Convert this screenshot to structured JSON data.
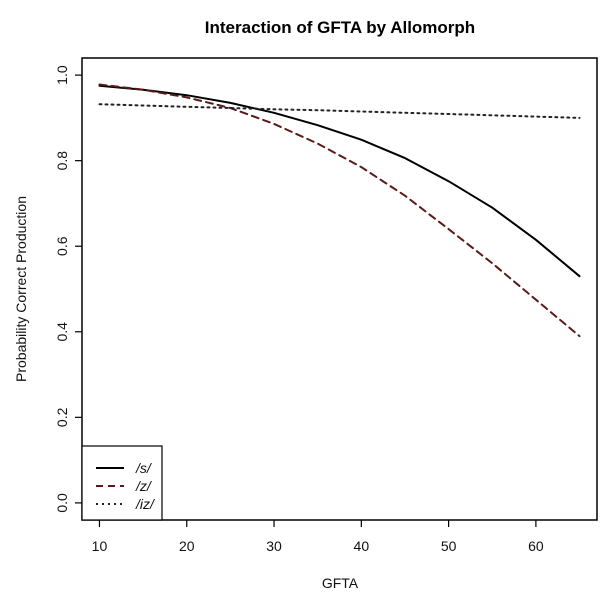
{
  "chart_data": {
    "type": "line",
    "title": "Interaction of GFTA by Allomorph",
    "xlabel": "GFTA",
    "ylabel": "Probability Correct Production",
    "xlim": [
      8,
      67
    ],
    "ylim": [
      -0.04,
      1.04
    ],
    "xticks": [
      10,
      20,
      30,
      40,
      50,
      60
    ],
    "yticks": [
      0.0,
      0.2,
      0.4,
      0.6,
      0.8,
      1.0
    ],
    "x": [
      10,
      15,
      20,
      25,
      30,
      35,
      40,
      45,
      50,
      55,
      60,
      65
    ],
    "series": [
      {
        "name": "/s/",
        "style": "solid",
        "color": "#000000",
        "values": [
          0.975,
          0.966,
          0.953,
          0.935,
          0.912,
          0.883,
          0.849,
          0.806,
          0.752,
          0.69,
          0.615,
          0.53
        ]
      },
      {
        "name": "/z/",
        "style": "dashed",
        "color": "#5a1a1a",
        "values": [
          0.978,
          0.966,
          0.948,
          0.923,
          0.886,
          0.84,
          0.785,
          0.718,
          0.64,
          0.56,
          0.475,
          0.39
        ]
      },
      {
        "name": "/iz/",
        "style": "dotted",
        "color": "#222222",
        "values": [
          0.932,
          0.929,
          0.926,
          0.923,
          0.92,
          0.918,
          0.915,
          0.912,
          0.909,
          0.906,
          0.903,
          0.9
        ]
      }
    ],
    "legend_position": "bottom-left",
    "grid": false
  }
}
